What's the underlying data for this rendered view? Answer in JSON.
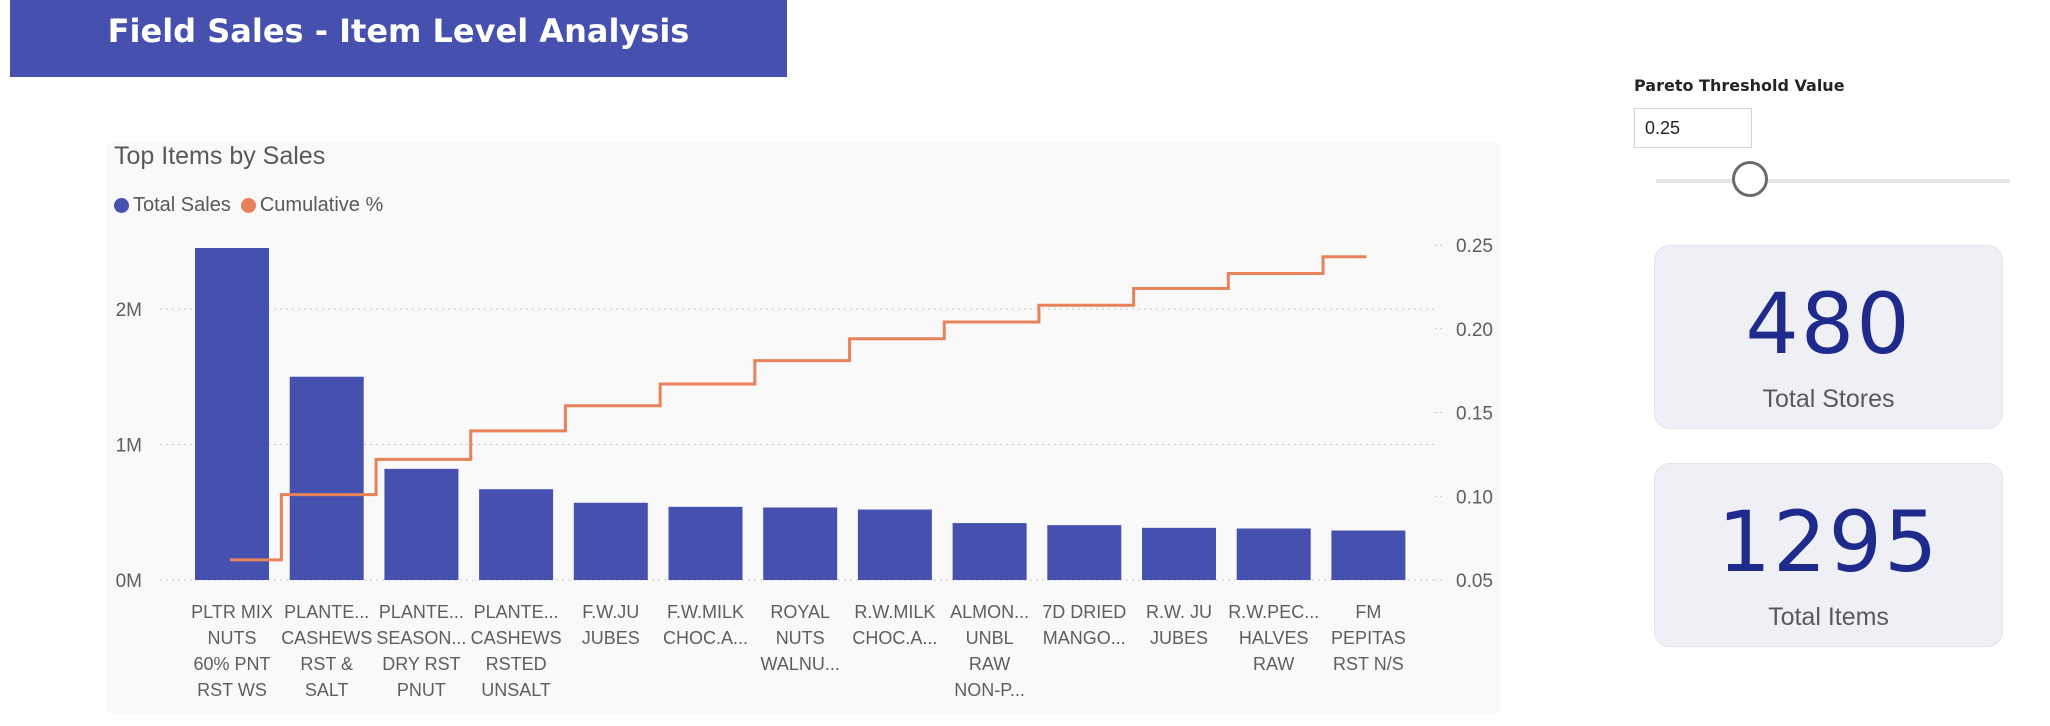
{
  "header": {
    "title": "Field Sales - Item Level Analysis"
  },
  "chart": {
    "title": "Top Items by Sales",
    "legend": [
      {
        "label": "Total Sales",
        "color": "#4650ae"
      },
      {
        "label": "Cumulative %",
        "color": "#e8825a"
      }
    ]
  },
  "slicer": {
    "label": "Pareto Threshold Value",
    "value": "0.25",
    "slider_fraction": 0.25
  },
  "cards": {
    "stores": {
      "value": "480",
      "label": "Total Stores"
    },
    "items": {
      "value": "1295",
      "label": "Total Items"
    }
  },
  "chart_data": {
    "type": "bar",
    "title": "Top Items by Sales",
    "categories": [
      [
        "PLTR MIX",
        "NUTS",
        "60% PNT",
        "RST WS"
      ],
      [
        "PLANTE...",
        "CASHEWS",
        "RST &",
        "SALT"
      ],
      [
        "PLANTE...",
        "SEASON...",
        "DRY RST",
        "PNUT"
      ],
      [
        "PLANTE...",
        "CASHEWS",
        "RSTED",
        "UNSALT"
      ],
      [
        "F.W.JU",
        "JUBES"
      ],
      [
        "F.W.MILK",
        "CHOC.A..."
      ],
      [
        "ROYAL",
        "NUTS",
        "WALNU..."
      ],
      [
        "R.W.MILK",
        "CHOC.A..."
      ],
      [
        "ALMON...",
        "UNBL",
        "RAW",
        "NON-P..."
      ],
      [
        "7D DRIED",
        "MANGO..."
      ],
      [
        "R.W. JU",
        "JUBES"
      ],
      [
        "R.W.PEC...",
        "HALVES",
        "RAW"
      ],
      [
        "FM",
        "PEPITAS",
        "RST N/S"
      ]
    ],
    "series": [
      {
        "name": "Total Sales",
        "axis": "left",
        "type": "bar",
        "color": "#4650ae",
        "values": [
          2450000,
          1500000,
          820000,
          670000,
          570000,
          540000,
          535000,
          520000,
          420000,
          405000,
          385000,
          380000,
          365000
        ]
      },
      {
        "name": "Cumulative %",
        "axis": "right",
        "type": "step-line",
        "color": "#e8825a",
        "values": [
          0.062,
          0.101,
          0.122,
          0.139,
          0.154,
          0.167,
          0.181,
          0.194,
          0.204,
          0.214,
          0.224,
          0.233,
          0.243
        ]
      }
    ],
    "y_left": {
      "min": 0,
      "max": 2450000,
      "ticks": [
        0,
        1000000,
        2000000
      ],
      "tick_labels": [
        "0M",
        "1M",
        "2M"
      ]
    },
    "y_right": {
      "min": 0.05,
      "max": 0.25,
      "ticks": [
        0.05,
        0.1,
        0.15,
        0.2,
        0.25
      ],
      "tick_labels": [
        "0.05",
        "0.10",
        "0.15",
        "0.20",
        "0.25"
      ]
    },
    "grid": true,
    "legend_position": "top-left"
  }
}
